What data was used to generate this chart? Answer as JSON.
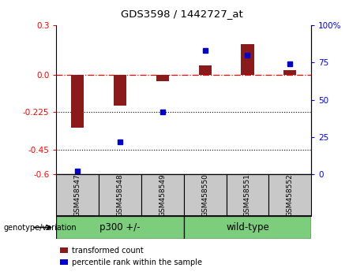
{
  "title": "GDS3598 / 1442727_at",
  "samples": [
    "GSM458547",
    "GSM458548",
    "GSM458549",
    "GSM458550",
    "GSM458551",
    "GSM458552"
  ],
  "red_values": [
    -0.32,
    -0.185,
    -0.04,
    0.055,
    0.185,
    0.03
  ],
  "blue_values_raw": [
    2,
    22,
    42,
    83,
    80,
    74
  ],
  "ylim_left": [
    -0.6,
    0.3
  ],
  "ylim_right": [
    0,
    100
  ],
  "hline_y": 0.0,
  "dotted_lines": [
    -0.225,
    -0.45
  ],
  "red_color": "#8B1A1A",
  "blue_color": "#0000CC",
  "bar_width": 0.3,
  "group_configs": [
    {
      "indices": [
        0,
        1,
        2
      ],
      "label": "p300 +/-",
      "color": "#7CCD7C"
    },
    {
      "indices": [
        3,
        4,
        5
      ],
      "label": "wild-type",
      "color": "#7CCD7C"
    }
  ],
  "legend_label_red": "transformed count",
  "legend_label_blue": "percentile rank within the sample",
  "genotype_label": "genotype/variation",
  "tick_vals_left": [
    0.3,
    0.0,
    -0.225,
    -0.45,
    -0.6
  ],
  "tick_vals_right": [
    100,
    75,
    50,
    25,
    0
  ],
  "background_xtick": "#C8C8C8"
}
